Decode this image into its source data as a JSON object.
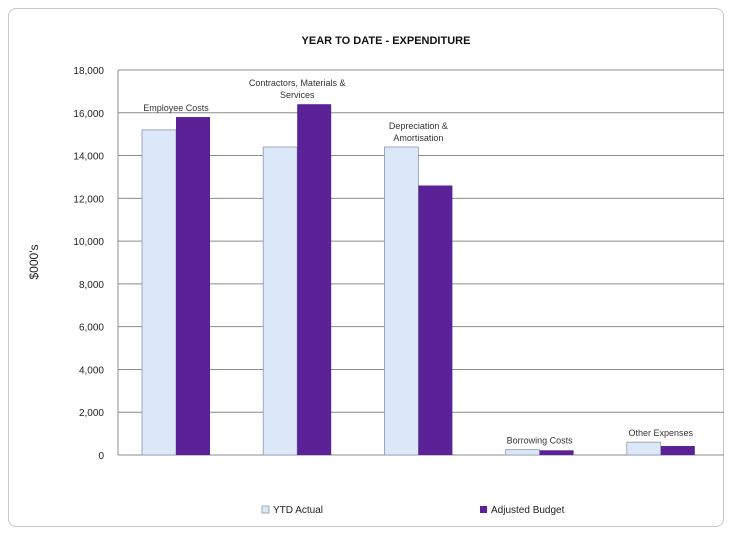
{
  "chart_data": {
    "type": "bar",
    "title": "YEAR TO DATE - EXPENDITURE",
    "ylabel": "$000's",
    "xlabel": "",
    "ylim": [
      0,
      18000
    ],
    "yticks": [
      "18,000",
      "16,000",
      "14,000",
      "12,000",
      "10,000",
      "8,000",
      "6,000",
      "4,000",
      "2,000",
      "0"
    ],
    "grid": true,
    "legend_position": "bottom",
    "categories": [
      [
        "Employee Costs"
      ],
      [
        "Contractors, Materials &",
        "Services"
      ],
      [
        "Depreciation &",
        "Amortisation"
      ],
      [
        "Borrowing Costs"
      ],
      [
        "Other Expenses"
      ]
    ],
    "series": [
      {
        "name": "YTD Actual",
        "color": "#dce8f8",
        "values": [
          15200,
          14400,
          14400,
          250,
          600
        ]
      },
      {
        "name": "Adjusted Budget",
        "color": "#5b2196",
        "values": [
          15800,
          16400,
          12600,
          220,
          420
        ]
      }
    ]
  }
}
